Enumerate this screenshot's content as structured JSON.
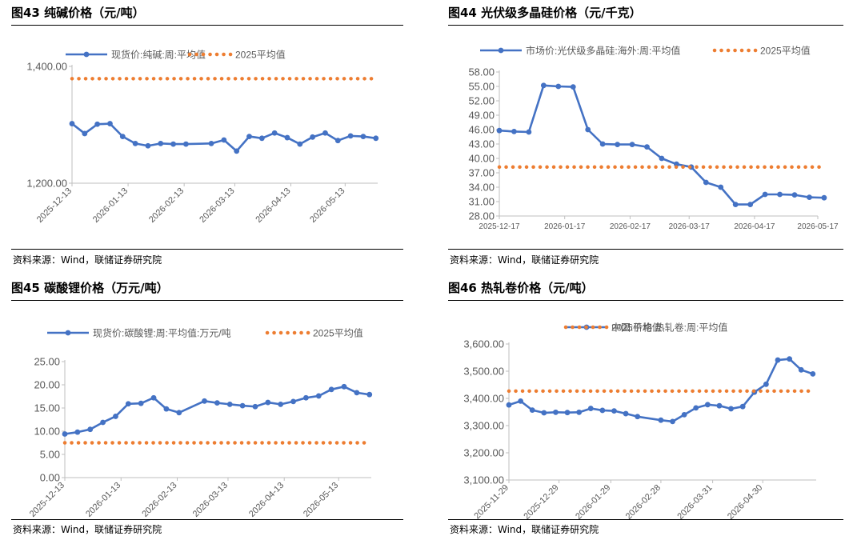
{
  "figures": [
    {
      "title": "图43 纯碱价格（元/吨）",
      "source": "资料来源：Wind，联储证券研究院"
    },
    {
      "title": "图44 光伏级多晶硅价格（元/千克）",
      "source": "资料来源：Wind，联储证券研究院"
    },
    {
      "title": "图45 碳酸锂价格（万元/吨）",
      "source": "资料来源：Wind，联储证券研究院"
    },
    {
      "title": "图46 热轧卷价格（元/吨）",
      "source": "资料来源：Wind，联储证券研究院"
    }
  ],
  "colors": {
    "series": "#4472C4",
    "avg": "#ED7D31",
    "axis": "#BFBFBF",
    "text": "#595959"
  },
  "chart_data": [
    {
      "type": "line",
      "x_tick_labels": [
        "2025-12-13",
        "2026-01-13",
        "2026-02-13",
        "2026-03-13",
        "2026-04-13",
        "2026-05-13"
      ],
      "x_range": [
        "2025-12-13",
        "2026-05-31"
      ],
      "ylim": [
        1200,
        1400
      ],
      "y_ticks": [
        "1,200.00",
        "1,400.00"
      ],
      "grid": false,
      "legend_position": "top",
      "series": [
        {
          "name": "现货价:纯碱:周:平均值",
          "style": "line-marker",
          "x": [
            "2025-12-13",
            "2025-12-20",
            "2025-12-27",
            "2026-01-03",
            "2026-01-10",
            "2026-01-17",
            "2026-01-24",
            "2026-01-31",
            "2026-02-07",
            "2026-02-14",
            "2026-02-28",
            "2026-03-07",
            "2026-03-14",
            "2026-03-21",
            "2026-03-28",
            "2026-04-04",
            "2026-04-11",
            "2026-04-18",
            "2026-04-25",
            "2026-05-02",
            "2026-05-09",
            "2026-05-16",
            "2026-05-23",
            "2026-05-30"
          ],
          "values": [
            1302,
            1285,
            1301,
            1302,
            1280,
            1268,
            1264,
            1268,
            1267,
            1267,
            1268,
            1274,
            1255,
            1280,
            1277,
            1286,
            1278,
            1267,
            1279,
            1286,
            1273,
            1281,
            1280,
            1277
          ]
        },
        {
          "name": "2025平均值",
          "style": "dotted",
          "x": [
            "2025-12-13",
            "2026-05-31"
          ],
          "values": [
            1379,
            1379
          ]
        }
      ]
    },
    {
      "type": "line",
      "x_tick_labels": [
        "2025-12-17",
        "2026-01-17",
        "2026-02-17",
        "2026-03-17",
        "2026-04-17",
        "2026-05-17"
      ],
      "x_range": [
        "2025-12-17",
        "2026-05-17"
      ],
      "ylim": [
        28,
        58
      ],
      "y_ticks": [
        "28.00",
        "31.00",
        "34.00",
        "37.00",
        "40.00",
        "43.00",
        "46.00",
        "49.00",
        "52.00",
        "55.00",
        "58.00"
      ],
      "grid": false,
      "legend_position": "top",
      "series": [
        {
          "name": "市场价:光伏级多晶硅:海外:周:平均值",
          "style": "line-marker",
          "x": [
            "2025-12-17",
            "2025-12-24",
            "2025-12-31",
            "2026-01-07",
            "2026-01-14",
            "2026-01-21",
            "2026-01-28",
            "2026-02-04",
            "2026-02-11",
            "2026-02-18",
            "2026-02-25",
            "2026-03-04",
            "2026-03-11",
            "2026-03-18",
            "2026-03-25",
            "2026-04-01",
            "2026-04-08",
            "2026-04-15",
            "2026-04-22",
            "2026-04-29",
            "2026-05-06",
            "2026-05-13",
            "2026-05-20"
          ],
          "values": [
            45.8,
            45.6,
            45.5,
            55.2,
            55.0,
            54.9,
            46.0,
            43.0,
            42.9,
            42.9,
            42.4,
            40.0,
            38.8,
            38.2,
            35.0,
            34.0,
            30.4,
            30.4,
            32.5,
            32.5,
            32.4,
            31.9,
            31.8
          ]
        },
        {
          "name": "2025平均值",
          "style": "dotted",
          "x": [
            "2025-12-17",
            "2026-05-20"
          ],
          "values": [
            38.2,
            38.2
          ]
        }
      ]
    },
    {
      "type": "line",
      "x_tick_labels": [
        "2025-12-13",
        "2026-01-13",
        "2026-02-13",
        "2026-03-13",
        "2026-04-13",
        "2026-05-13"
      ],
      "x_range": [
        "2025-12-13",
        "2026-05-31"
      ],
      "ylim": [
        0,
        25
      ],
      "y_ticks": [
        "0.00",
        "5.00",
        "10.00",
        "15.00",
        "20.00",
        "25.00"
      ],
      "grid": false,
      "legend_position": "top",
      "series": [
        {
          "name": "现货价:碳酸锂:周:平均值:万元/吨",
          "style": "line-marker",
          "x": [
            "2025-12-13",
            "2025-12-20",
            "2025-12-27",
            "2026-01-03",
            "2026-01-10",
            "2026-01-17",
            "2026-01-24",
            "2026-01-31",
            "2026-02-07",
            "2026-02-14",
            "2026-02-28",
            "2026-03-07",
            "2026-03-14",
            "2026-03-21",
            "2026-03-28",
            "2026-04-04",
            "2026-04-11",
            "2026-04-18",
            "2026-04-25",
            "2026-05-02",
            "2026-05-09",
            "2026-05-16",
            "2026-05-23",
            "2026-05-30"
          ],
          "values": [
            9.4,
            9.8,
            10.4,
            11.9,
            13.2,
            15.9,
            16.0,
            17.2,
            14.8,
            14.0,
            16.5,
            16.1,
            15.8,
            15.5,
            15.3,
            16.2,
            15.8,
            16.4,
            17.2,
            17.6,
            19.0,
            19.6,
            18.3,
            17.9
          ]
        },
        {
          "name": "2025平均值",
          "style": "dotted",
          "x": [
            "2025-12-13",
            "2026-05-30"
          ],
          "values": [
            7.5,
            7.5
          ]
        }
      ]
    },
    {
      "type": "line",
      "x_tick_labels": [
        "2025-11-29",
        "2025-12-29",
        "2026-01-29",
        "2026-02-28",
        "2026-03-31",
        "2026-04-30"
      ],
      "x_range": [
        "2025-11-29",
        "2026-06-01"
      ],
      "ylim": [
        3100,
        3600
      ],
      "y_ticks": [
        "3,100.00",
        "3,200.00",
        "3,300.00",
        "3,400.00",
        "3,500.00",
        "3,600.00"
      ],
      "grid": false,
      "legend_position": "top",
      "series": [
        {
          "name": "中国:价格:热轧卷:周:平均值",
          "style": "line-marker",
          "x": [
            "2025-11-29",
            "2025-12-06",
            "2025-12-13",
            "2025-12-20",
            "2025-12-27",
            "2026-01-03",
            "2026-01-10",
            "2026-01-17",
            "2026-01-24",
            "2026-01-31",
            "2026-02-07",
            "2026-02-14",
            "2026-02-28",
            "2026-03-07",
            "2026-03-14",
            "2026-03-21",
            "2026-03-28",
            "2026-04-04",
            "2026-04-11",
            "2026-04-18",
            "2026-04-25",
            "2026-05-02",
            "2026-05-09",
            "2026-05-16",
            "2026-05-23",
            "2026-05-30"
          ],
          "values": [
            3376,
            3390,
            3357,
            3347,
            3349,
            3348,
            3349,
            3363,
            3356,
            3354,
            3344,
            3333,
            3320,
            3315,
            3340,
            3365,
            3377,
            3373,
            3362,
            3370,
            3423,
            3452,
            3541,
            3545,
            3505,
            3490
          ]
        },
        {
          "name": "2025平均值",
          "style": "dotted",
          "x": [
            "2025-11-29",
            "2026-05-30"
          ],
          "values": [
            3427,
            3427
          ]
        }
      ]
    }
  ]
}
